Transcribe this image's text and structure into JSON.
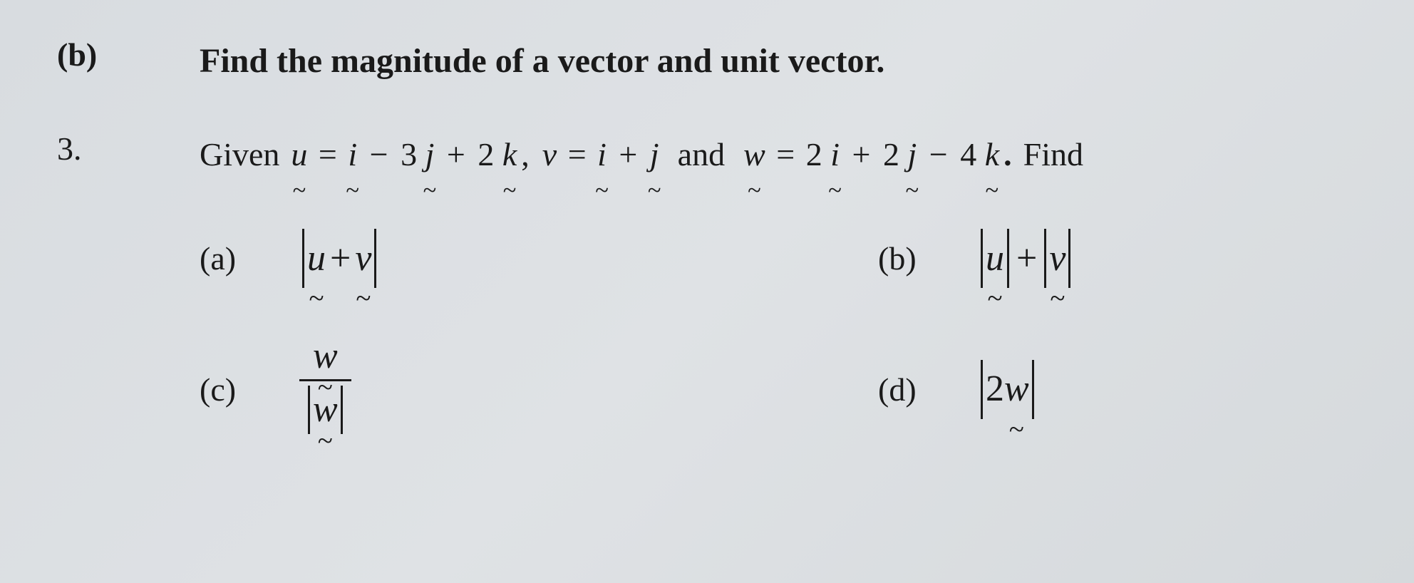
{
  "heading": {
    "label": "(b)",
    "text": "Find the magnitude of a vector and unit vector."
  },
  "question": {
    "number": "3.",
    "given_word": "Given",
    "and_word": "and",
    "find_word": "Find",
    "vectors": {
      "u": {
        "sym": "u",
        "expr_parts": [
          "i",
          "−",
          "3",
          "j",
          "+",
          "2",
          "k"
        ]
      },
      "v": {
        "sym": "v",
        "expr_parts": [
          "i",
          "+",
          "j"
        ]
      },
      "w": {
        "sym": "w",
        "expr_parts": [
          "2",
          "i",
          "+",
          "2",
          "j",
          "−",
          "4",
          "k"
        ]
      }
    },
    "options": {
      "a": {
        "label": "(a)",
        "type": "abs_sum",
        "left": "u",
        "right": "v",
        "op": "+"
      },
      "b": {
        "label": "(b)",
        "type": "sum_abs",
        "left": "u",
        "right": "v",
        "op": "+"
      },
      "c": {
        "label": "(c)",
        "type": "unit_vector",
        "vec": "w"
      },
      "d": {
        "label": "(d)",
        "type": "abs_scalar",
        "scalar": "2",
        "vec": "w"
      }
    }
  },
  "style": {
    "text_color": "#1a1a1a",
    "bg_color": "#dadde1",
    "heading_fontsize": 48,
    "body_fontsize": 46,
    "math_fontsize": 52
  }
}
